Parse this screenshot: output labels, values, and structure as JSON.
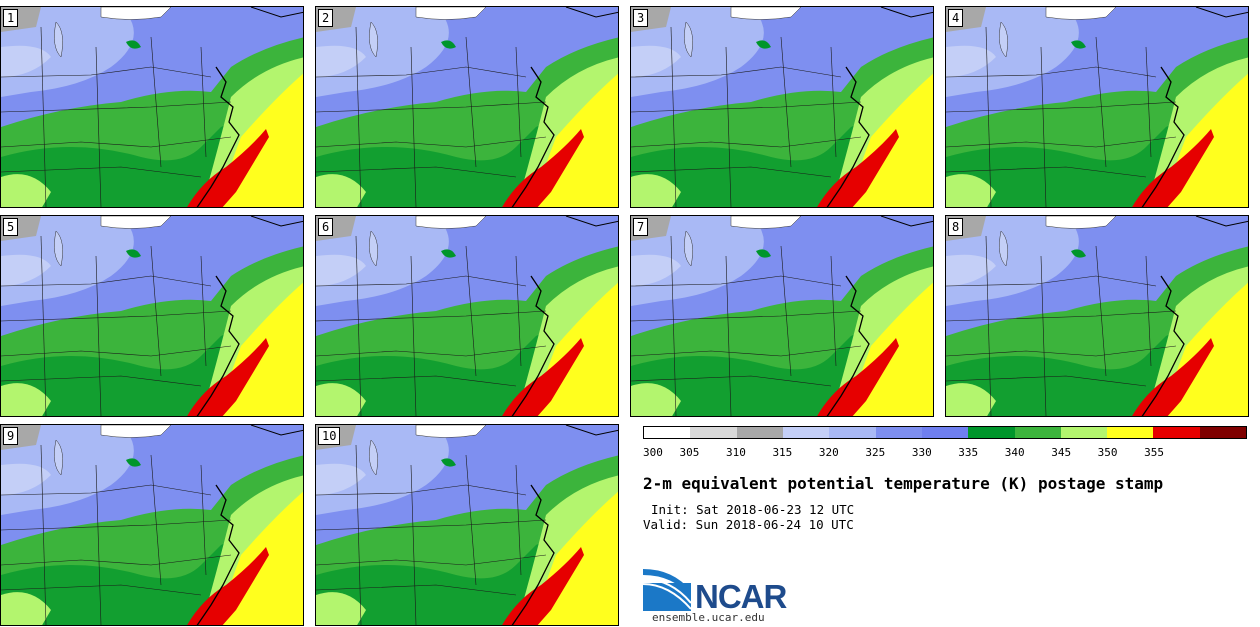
{
  "panels": [
    {
      "label": "1"
    },
    {
      "label": "2"
    },
    {
      "label": "3"
    },
    {
      "label": "4"
    },
    {
      "label": "5"
    },
    {
      "label": "6"
    },
    {
      "label": "7"
    },
    {
      "label": "8"
    },
    {
      "label": "9"
    },
    {
      "label": "10"
    }
  ],
  "colorbar": {
    "colors": [
      "#ffffff",
      "#d9d9d9",
      "#a8a8a8",
      "#c4cff7",
      "#a9b9f5",
      "#7e8ff0",
      "#6f7ff0",
      "#00962b",
      "#3cb43c",
      "#b3f56e",
      "#ffff1e",
      "#e60000",
      "#7f0000"
    ],
    "ticks": [
      "300",
      "305",
      "310",
      "315",
      "320",
      "325",
      "330",
      "335",
      "340",
      "345",
      "350",
      "355"
    ]
  },
  "title": "2-m equivalent potential temperature (K) postage stamp",
  "init": "Init: Sat 2018-06-23 12 UTC",
  "valid": "Valid: Sun 2018-06-24 10 UTC",
  "logo": {
    "text": "NCAR",
    "site": "ensemble.ucar.edu"
  }
}
